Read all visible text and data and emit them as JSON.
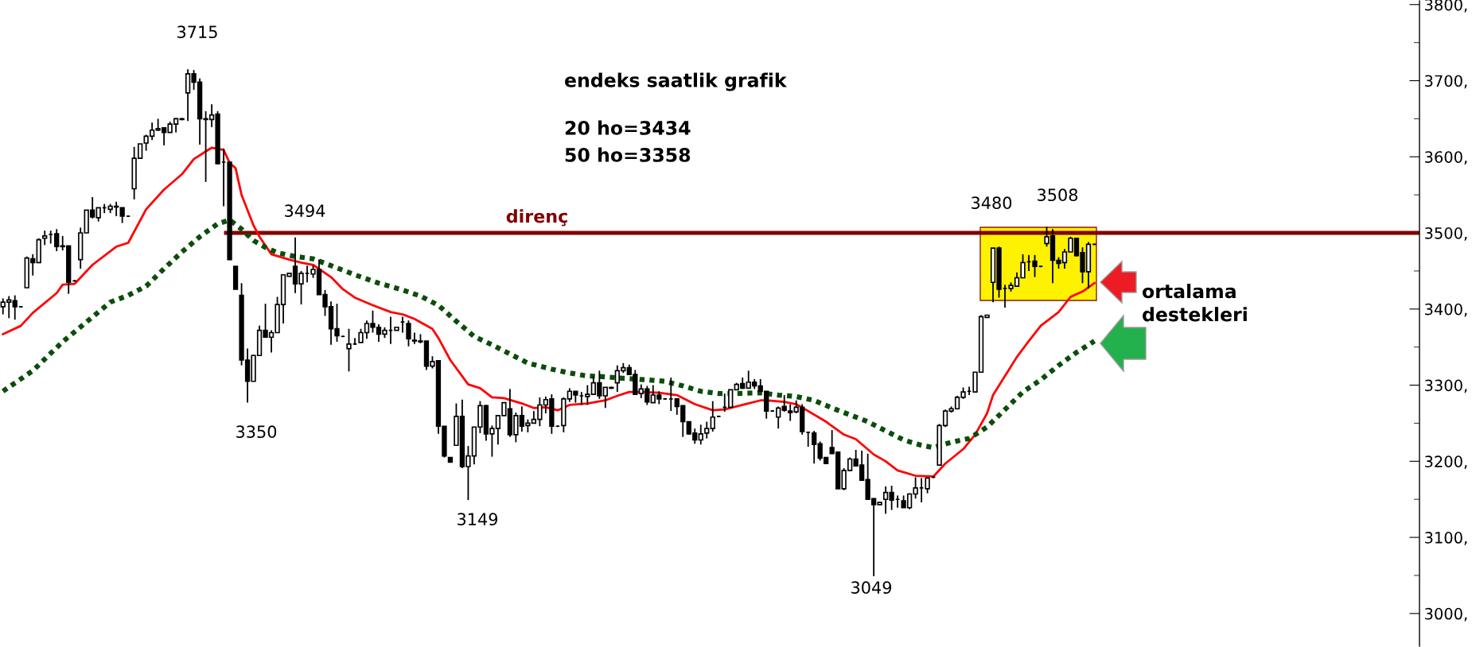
{
  "chart_data": {
    "type": "candlestick",
    "title": "endeks saatlik grafik",
    "categories": [
      null,
      null,
      null,
      null,
      null,
      null,
      null,
      null,
      null,
      null,
      null,
      null,
      null,
      null,
      null,
      null,
      null,
      null,
      null,
      null,
      null,
      null,
      null,
      null,
      null,
      null,
      null,
      null,
      null,
      null,
      null,
      null,
      null,
      null,
      null,
      null,
      null,
      null,
      null,
      null,
      null,
      null,
      null,
      null,
      null,
      null,
      null,
      null,
      null,
      null,
      null,
      null,
      null,
      null,
      null,
      null,
      null,
      null,
      null,
      null,
      null,
      null,
      null,
      null,
      null,
      null,
      null,
      null,
      null,
      null,
      null,
      null,
      null,
      null,
      null,
      null,
      null,
      null,
      null,
      null,
      null,
      null,
      null,
      null,
      null,
      null,
      null,
      null,
      null,
      null,
      null,
      null,
      null,
      null,
      null,
      null,
      null,
      null,
      null,
      null,
      null,
      null,
      null,
      null,
      null,
      null,
      null,
      null,
      null,
      null,
      null,
      null,
      null,
      null,
      null,
      null,
      null,
      null,
      null,
      null,
      null,
      null,
      null,
      null,
      null,
      null,
      null,
      null,
      null,
      null,
      null,
      null,
      null,
      null,
      null,
      null,
      null,
      null,
      null,
      null,
      null,
      null,
      null,
      null,
      null,
      null,
      null,
      null,
      null,
      null,
      null,
      null,
      null,
      null,
      null,
      null,
      null,
      null,
      null,
      null,
      null,
      null,
      null,
      null,
      null,
      null,
      null,
      null,
      null,
      null,
      null,
      null,
      null,
      null,
      null,
      null,
      null,
      null,
      null,
      null,
      null,
      null,
      null,
      null,
      null,
      null,
      null,
      null,
      null,
      null,
      null,
      null,
      null,
      null,
      null,
      null,
      null,
      null,
      null,
      null,
      null,
      null,
      null,
      null,
      null,
      null,
      null,
      null,
      null,
      null,
      null,
      null,
      null,
      null,
      null,
      null,
      null,
      null,
      null,
      null,
      null,
      null,
      null,
      null,
      null,
      null,
      null,
      null,
      null,
      null,
      null,
      null,
      null,
      null,
      null,
      null,
      null,
      null
    ],
    "ohlc": [
      [
        3403,
        3414,
        3393,
        3409
      ],
      [
        3409,
        3417,
        3388,
        3412
      ],
      [
        3411,
        3418,
        3386,
        3403
      ],
      [
        3403,
        3404,
        3402,
        3403
      ],
      [
        3428,
        3469,
        3428,
        3467
      ],
      [
        3466,
        3472,
        3444,
        3461
      ],
      [
        3461,
        3493,
        3461,
        3491
      ],
      [
        3493,
        3503,
        3484,
        3496
      ],
      [
        3498,
        3503,
        3486,
        3498
      ],
      [
        3499,
        3505,
        3476,
        3482
      ],
      [
        3483,
        3496,
        3477,
        3482
      ],
      [
        3483,
        3483,
        3420,
        3435
      ],
      [
        3437,
        3438,
        3436,
        3437
      ],
      [
        3465,
        3507,
        3453,
        3500
      ],
      [
        3500,
        3530,
        3500,
        3530
      ],
      [
        3530,
        3547,
        3519,
        3521
      ],
      [
        3520,
        3533,
        3515,
        3533
      ],
      [
        3533,
        3538,
        3526,
        3533
      ],
      [
        3531,
        3538,
        3526,
        3535
      ],
      [
        3535,
        3541,
        3522,
        3534
      ],
      [
        3533,
        3533,
        3513,
        3522
      ],
      [
        3522,
        3523,
        3521,
        3522
      ],
      [
        3558,
        3613,
        3544,
        3598
      ],
      [
        3598,
        3617,
        3598,
        3617
      ],
      [
        3618,
        3629,
        3608,
        3627
      ],
      [
        3627,
        3645,
        3622,
        3635
      ],
      [
        3635,
        3650,
        3634,
        3637
      ],
      [
        3638,
        3638,
        3615,
        3632
      ],
      [
        3632,
        3646,
        3632,
        3643
      ],
      [
        3643,
        3651,
        3632,
        3650
      ],
      [
        3649,
        3651,
        3648,
        3650
      ],
      [
        3684,
        3715,
        3647,
        3709
      ],
      [
        3709,
        3714,
        3688,
        3698
      ],
      [
        3698,
        3703,
        3616,
        3650
      ],
      [
        3650,
        3660,
        3567,
        3649
      ],
      [
        3649,
        3669,
        3639,
        3655
      ],
      [
        3656,
        3660,
        3590,
        3591
      ],
      [
        3593,
        3611,
        3535,
        3593
      ],
      [
        3593,
        3594,
        3465,
        3465
      ],
      [
        3456,
        3456,
        3426,
        3426
      ],
      [
        3418,
        3434,
        3326,
        3333
      ],
      [
        3333,
        3348,
        3277,
        3305
      ],
      [
        3305,
        3340,
        3305,
        3339
      ],
      [
        3339,
        3378,
        3339,
        3372
      ],
      [
        3372,
        3407,
        3363,
        3363
      ],
      [
        3363,
        3372,
        3343,
        3369
      ],
      [
        3369,
        3416,
        3369,
        3406
      ],
      [
        3406,
        3445,
        3381,
        3445
      ],
      [
        3443,
        3447,
        3443,
        3447
      ],
      [
        3456,
        3494,
        3421,
        3433
      ],
      [
        3433,
        3450,
        3406,
        3447
      ],
      [
        3447,
        3457,
        3435,
        3447
      ],
      [
        3446,
        3457,
        3441,
        3452
      ],
      [
        3452,
        3465,
        3419,
        3419
      ],
      [
        3419,
        3425,
        3391,
        3403
      ],
      [
        3403,
        3410,
        3353,
        3374
      ],
      [
        3374,
        3407,
        3357,
        3365
      ],
      [
        3364,
        3365,
        3363,
        3364
      ],
      [
        3348,
        3374,
        3318,
        3354
      ],
      [
        3354,
        3362,
        3353,
        3354
      ],
      [
        3356,
        3374,
        3356,
        3369
      ],
      [
        3369,
        3385,
        3361,
        3381
      ],
      [
        3381,
        3398,
        3369,
        3376
      ],
      [
        3376,
        3380,
        3357,
        3367
      ],
      [
        3367,
        3376,
        3362,
        3372
      ],
      [
        3372,
        3390,
        3354,
        3372
      ],
      [
        3372,
        3376,
        3372,
        3376
      ],
      [
        3383,
        3390,
        3369,
        3383
      ],
      [
        3381,
        3385,
        3351,
        3361
      ],
      [
        3359,
        3369,
        3354,
        3358
      ],
      [
        3358,
        3367,
        3355,
        3357
      ],
      [
        3358,
        3358,
        3320,
        3325
      ],
      [
        3325,
        3338,
        3322,
        3331
      ],
      [
        3332,
        3332,
        3236,
        3246
      ],
      [
        3246,
        3246,
        3205,
        3207
      ],
      [
        3205,
        3205,
        3199,
        3199
      ],
      [
        3221,
        3276,
        3221,
        3259
      ],
      [
        3259,
        3281,
        3191,
        3193
      ],
      [
        3193,
        3220,
        3149,
        3207
      ],
      [
        3207,
        3245,
        3196,
        3245
      ],
      [
        3245,
        3279,
        3237,
        3273
      ],
      [
        3273,
        3274,
        3227,
        3236
      ],
      [
        3236,
        3247,
        3206,
        3243
      ],
      [
        3243,
        3260,
        3222,
        3260
      ],
      [
        3260,
        3277,
        3260,
        3277
      ],
      [
        3269,
        3295,
        3232,
        3235
      ],
      [
        3235,
        3264,
        3225,
        3260
      ],
      [
        3260,
        3272,
        3239,
        3246
      ],
      [
        3247,
        3255,
        3238,
        3250
      ],
      [
        3250,
        3266,
        3250,
        3255
      ],
      [
        3255,
        3284,
        3246,
        3274
      ],
      [
        3274,
        3285,
        3263,
        3281
      ],
      [
        3282,
        3288,
        3236,
        3246
      ],
      [
        3246,
        3247,
        3245,
        3246
      ],
      [
        3247,
        3284,
        3238,
        3282
      ],
      [
        3282,
        3296,
        3278,
        3292
      ],
      [
        3292,
        3292,
        3277,
        3287
      ],
      [
        3286,
        3291,
        3274,
        3286
      ],
      [
        3285,
        3300,
        3274,
        3288
      ],
      [
        3288,
        3312,
        3288,
        3303
      ],
      [
        3303,
        3319,
        3282,
        3286
      ],
      [
        3286,
        3297,
        3270,
        3297
      ],
      [
        3296,
        3298,
        3295,
        3297
      ],
      [
        3303,
        3326,
        3291,
        3319
      ],
      [
        3319,
        3329,
        3316,
        3323
      ],
      [
        3323,
        3327,
        3314,
        3314
      ],
      [
        3314,
        3320,
        3287,
        3288
      ],
      [
        3289,
        3301,
        3283,
        3295
      ],
      [
        3295,
        3299,
        3274,
        3278
      ],
      [
        3277,
        3300,
        3277,
        3287
      ],
      [
        3287,
        3292,
        3275,
        3282
      ],
      [
        3282,
        3283,
        3281,
        3282
      ],
      [
        3282,
        3310,
        3266,
        3282
      ],
      [
        3282,
        3282,
        3261,
        3272
      ],
      [
        3273,
        3273,
        3232,
        3252
      ],
      [
        3252,
        3252,
        3235,
        3236
      ],
      [
        3237,
        3243,
        3223,
        3228
      ],
      [
        3228,
        3248,
        3222,
        3236
      ],
      [
        3237,
        3252,
        3230,
        3243
      ],
      [
        3243,
        3279,
        3239,
        3258
      ],
      [
        3259,
        3260,
        3258,
        3259
      ],
      [
        3271,
        3289,
        3265,
        3271
      ],
      [
        3271,
        3294,
        3271,
        3294
      ],
      [
        3294,
        3303,
        3294,
        3301
      ],
      [
        3302,
        3310,
        3295,
        3296
      ],
      [
        3296,
        3319,
        3296,
        3304
      ],
      [
        3304,
        3308,
        3295,
        3299
      ],
      [
        3299,
        3308,
        3291,
        3292
      ],
      [
        3292,
        3292,
        3256,
        3266
      ],
      [
        3266,
        3267,
        3265,
        3266
      ],
      [
        3258,
        3272,
        3243,
        3270
      ],
      [
        3272,
        3287,
        3265,
        3267
      ],
      [
        3266,
        3275,
        3253,
        3264
      ],
      [
        3265,
        3280,
        3263,
        3271
      ],
      [
        3271,
        3275,
        3235,
        3239
      ],
      [
        3238,
        3239,
        3219,
        3238
      ],
      [
        3237,
        3240,
        3197,
        3222
      ],
      [
        3223,
        3226,
        3201,
        3204
      ],
      [
        3205,
        3205,
        3197,
        3197
      ],
      [
        3218,
        3241,
        3210,
        3210
      ],
      [
        3212,
        3212,
        3164,
        3164
      ],
      [
        3164,
        3191,
        3162,
        3188
      ],
      [
        3188,
        3205,
        3187,
        3203
      ],
      [
        3203,
        3215,
        3194,
        3194
      ],
      [
        3195,
        3214,
        3175,
        3175
      ],
      [
        3176,
        3210,
        3150,
        3150
      ],
      [
        3151,
        3151,
        3049,
        3143
      ],
      [
        3143,
        3146,
        3143,
        3146
      ],
      [
        3150,
        3167,
        3131,
        3159
      ],
      [
        3159,
        3168,
        3136,
        3149
      ],
      [
        3150,
        3155,
        3139,
        3150
      ],
      [
        3148,
        3155,
        3139,
        3139
      ],
      [
        3139,
        3158,
        3137,
        3157
      ],
      [
        3157,
        3179,
        3151,
        3165
      ],
      [
        3165,
        3178,
        3146,
        3165
      ],
      [
        3164,
        3179,
        3158,
        3178
      ],
      [
        3179,
        3180,
        3178,
        3179
      ],
      [
        3195,
        3249,
        3195,
        3247
      ],
      [
        3247,
        3268,
        3245,
        3266
      ],
      [
        3266,
        3272,
        3264,
        3269
      ],
      [
        3269,
        3286,
        3268,
        3284
      ],
      [
        3284,
        3297,
        3282,
        3291
      ],
      [
        3292,
        3298,
        3287,
        3292
      ],
      [
        3291,
        3317,
        3291,
        3317
      ],
      [
        3317,
        3392,
        3317,
        3390
      ],
      [
        3389,
        3392,
        3389,
        3392
      ],
      [
        3435,
        3480,
        3409,
        3480
      ],
      [
        3480,
        3482,
        3415,
        3426
      ],
      [
        3427,
        3432,
        3402,
        3427
      ],
      [
        3427,
        3435,
        3423,
        3431
      ],
      [
        3430,
        3448,
        3430,
        3441
      ],
      [
        3441,
        3472,
        3441,
        3461
      ],
      [
        3462,
        3471,
        3450,
        3462
      ],
      [
        3463,
        3471,
        3442,
        3456
      ],
      [
        3456,
        3457,
        3455,
        3456
      ],
      [
        3486,
        3508,
        3482,
        3495
      ],
      [
        3496,
        3505,
        3434,
        3464
      ],
      [
        3464,
        3468,
        3453,
        3460
      ],
      [
        3461,
        3479,
        3453,
        3475
      ],
      [
        3475,
        3495,
        3475,
        3493
      ],
      [
        3493,
        3493,
        3469,
        3470
      ],
      [
        3474,
        3481,
        3434,
        3449
      ],
      [
        3449,
        3488,
        3427,
        3485
      ],
      [
        3485,
        3486,
        3484,
        3485
      ],
      null,
      null,
      null,
      null,
      null,
      null,
      null,
      null,
      null,
      null,
      null,
      null,
      null,
      null,
      null,
      null,
      null,
      null,
      null,
      null,
      null,
      null,
      null,
      null,
      null,
      null,
      null,
      null,
      null,
      null,
      null,
      null,
      null,
      null,
      null,
      null,
      null,
      null,
      null,
      null,
      null,
      null,
      null,
      null,
      null,
      null,
      null,
      null,
      null,
      null,
      null,
      null,
      null,
      null
    ],
    "series": [
      {
        "type": "line",
        "color": "#ff0000",
        "line_style": "solid",
        "values": [
          3367,
          null,
          null,
          3378,
          null,
          3395,
          null,
          null,
          null,
          3421,
          3432,
          null,
          3433,
          null,
          null,
          3458,
          null,
          null,
          null,
          3482,
          null,
          3487,
          null,
          null,
          3531,
          null,
          null,
          3557,
          null,
          null,
          3577,
          null,
          3597,
          null,
          null,
          3612,
          null,
          3609,
          3592,
          3585,
          3550,
          null,
          3510,
          3495,
          null,
          3472,
          null,
          null,
          3465,
          null,
          3461,
          null,
          3458,
          null,
          null,
          3442,
          null,
          3426,
          null,
          3415,
          null,
          null,
          3405,
          null,
          null,
          3396,
          null,
          3393,
          null,
          3387,
          null,
          null,
          3374,
          3362,
          null,
          3333,
          null,
          null,
          3301,
          null,
          3296,
          null,
          3284,
          null,
          3283,
          null,
          null,
          3276,
          null,
          3270,
          null,
          3271,
          null,
          3267,
          null,
          3274,
          null,
          null,
          3276,
          null,
          null,
          3280,
          null,
          3286,
          null,
          3291,
          null,
          3291,
          null,
          null,
          3290,
          null,
          null,
          3287,
          null,
          null,
          3275,
          null,
          null,
          3267,
          null,
          3268,
          null,
          null,
          3274,
          null,
          null,
          3280,
          3280,
          null,
          null,
          3278,
          null,
          3275,
          null,
          3266,
          null,
          null,
          3252,
          null,
          null,
          3235,
          null,
          3229,
          null,
          null,
          3209,
          null,
          3200,
          null,
          3188,
          null,
          null,
          3181,
          null,
          null,
          3180,
          null,
          3197,
          null,
          null,
          3216,
          null,
          3235,
          null,
          3263,
          3287,
          null,
          3312,
          null,
          3337,
          null,
          3358,
          null,
          3378,
          null,
          null,
          3396,
          null,
          3416,
          null,
          3423,
          null,
          3434,
          null,
          null,
          null,
          null,
          null,
          null,
          null,
          null,
          null,
          null,
          null,
          null,
          null,
          null,
          null,
          null,
          null,
          null,
          null,
          null,
          null,
          null,
          null,
          null,
          null,
          null,
          null,
          null,
          null,
          null,
          null,
          null,
          null,
          null,
          null,
          null,
          null,
          null,
          null,
          null,
          null,
          null,
          null,
          null,
          null,
          null,
          null,
          null,
          null,
          null,
          null,
          null,
          null,
          null
        ]
      },
      {
        "type": "line",
        "color": "#0b4d0b",
        "line_style": "dotted",
        "values": [
          3292,
          null,
          null,
          null,
          null,
          3319,
          null,
          null,
          null,
          null,
          3357,
          null,
          null,
          null,
          3383,
          null,
          null,
          null,
          3409,
          null,
          null,
          3418,
          null,
          null,
          3430,
          null,
          null,
          3453,
          null,
          null,
          3475,
          null,
          null,
          3495,
          null,
          null,
          3512,
          null,
          3517,
          null,
          3505,
          null,
          3490,
          null,
          3481,
          null,
          3474,
          null,
          null,
          3469,
          null,
          null,
          3466,
          null,
          null,
          null,
          3454,
          null,
          null,
          3445,
          null,
          null,
          null,
          3434,
          null,
          null,
          null,
          3425,
          null,
          null,
          3417,
          null,
          null,
          3405,
          null,
          null,
          3384,
          null,
          null,
          3364,
          null,
          null,
          3353,
          null,
          null,
          3341,
          null,
          null,
          3329,
          null,
          null,
          null,
          3321,
          null,
          null,
          3316,
          null,
          null,
          3312,
          null,
          null,
          3311,
          null,
          null,
          3309,
          null,
          null,
          null,
          3307,
          null,
          null,
          3305,
          null,
          null,
          3299,
          null,
          null,
          3292,
          null,
          null,
          3289,
          null,
          null,
          3289,
          null,
          null,
          null,
          3290,
          null,
          null,
          3287,
          null,
          null,
          3285,
          null,
          null,
          3280,
          null,
          null,
          3270,
          null,
          null,
          3261,
          null,
          null,
          3252,
          null,
          null,
          3240,
          null,
          null,
          3228,
          null,
          null,
          3221,
          null,
          3218,
          null,
          null,
          3225,
          null,
          null,
          3230,
          null,
          null,
          3245,
          null,
          null,
          3268,
          null,
          null,
          3291,
          null,
          null,
          3307,
          null,
          null,
          3326,
          null,
          null,
          3343,
          null,
          null,
          3358,
          null,
          null,
          null,
          null,
          null,
          null,
          null,
          null,
          null,
          null,
          null,
          null,
          null,
          null,
          null,
          null,
          null,
          null,
          null,
          null,
          null,
          null,
          null,
          null,
          null,
          null,
          null,
          null,
          null,
          null,
          null,
          null,
          null,
          null,
          null,
          null,
          null,
          null,
          null,
          null,
          null,
          null,
          null,
          null,
          null,
          null,
          null,
          null,
          null,
          null,
          null,
          null,
          null,
          null
        ]
      }
    ],
    "ylim": [
      2956,
      3806
    ],
    "yticks": [
      {
        "value": 3000,
        "label": "3000,"
      },
      {
        "value": 3050,
        "label": null
      },
      {
        "value": 3100,
        "label": "3100,"
      },
      {
        "value": 3150,
        "label": null
      },
      {
        "value": 3200,
        "label": "3200,"
      },
      {
        "value": 3250,
        "label": null
      },
      {
        "value": 3300,
        "label": "3300,"
      },
      {
        "value": 3350,
        "label": null
      },
      {
        "value": 3400,
        "label": "3400,"
      },
      {
        "value": 3450,
        "label": null
      },
      {
        "value": 3500,
        "label": "3500,"
      },
      {
        "value": 3550,
        "label": null
      },
      {
        "value": 3600,
        "label": "3600,"
      },
      {
        "value": 3650,
        "label": null
      },
      {
        "value": 3700,
        "label": "3700,"
      },
      {
        "value": 3750,
        "label": null
      },
      {
        "value": 3800,
        "label": "3800,"
      }
    ],
    "ref_lines": [
      {
        "axis": "y",
        "value": 3500,
        "label": "direnç",
        "color": "#800000"
      }
    ],
    "annotations": [
      "20 ho=3434",
      "50 ho=3358",
      "ortalama\ndestekleri",
      "3715",
      "3494",
      "3350",
      "3149",
      "3049",
      "3480",
      "3508"
    ]
  }
}
